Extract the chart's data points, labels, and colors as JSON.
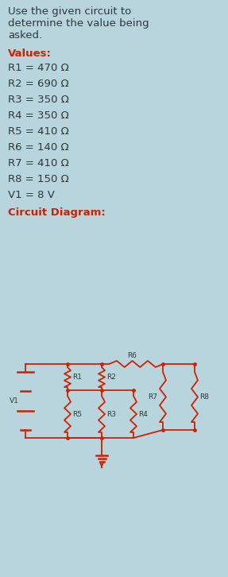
{
  "bg_color": "#b8d4dc",
  "title_text_lines": [
    "Use the given circuit to",
    "determine the value being",
    "asked."
  ],
  "title_color": "#2a3a3a",
  "values_label": "Values:",
  "values_color": "#cc2200",
  "values": [
    "R1 = 470 Ω",
    "R2 = 690 Ω",
    "R3 = 350 Ω",
    "R4 = 350 Ω",
    "R5 = 410 Ω",
    "R6 = 140 Ω",
    "R7 = 410 Ω",
    "R8 = 150 Ω",
    "V1 = 8 V"
  ],
  "circuit_label": "Circuit Diagram:",
  "circuit_color": "#cc2200",
  "wire_color": "#cc2200",
  "label_color": "#2a3a3a",
  "font_size_title": 9.5,
  "font_size_values": 9.5,
  "font_size_labels": 6.5
}
